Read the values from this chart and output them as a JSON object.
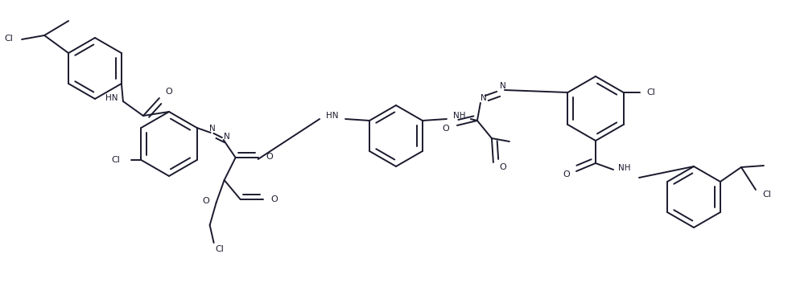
{
  "bg_color": "#ffffff",
  "line_color": "#1a1a2e",
  "lw": 1.4,
  "figsize": [
    9.84,
    3.57
  ],
  "dpi": 100,
  "xlim": [
    0,
    9.84
  ],
  "ylim": [
    0,
    3.57
  ]
}
